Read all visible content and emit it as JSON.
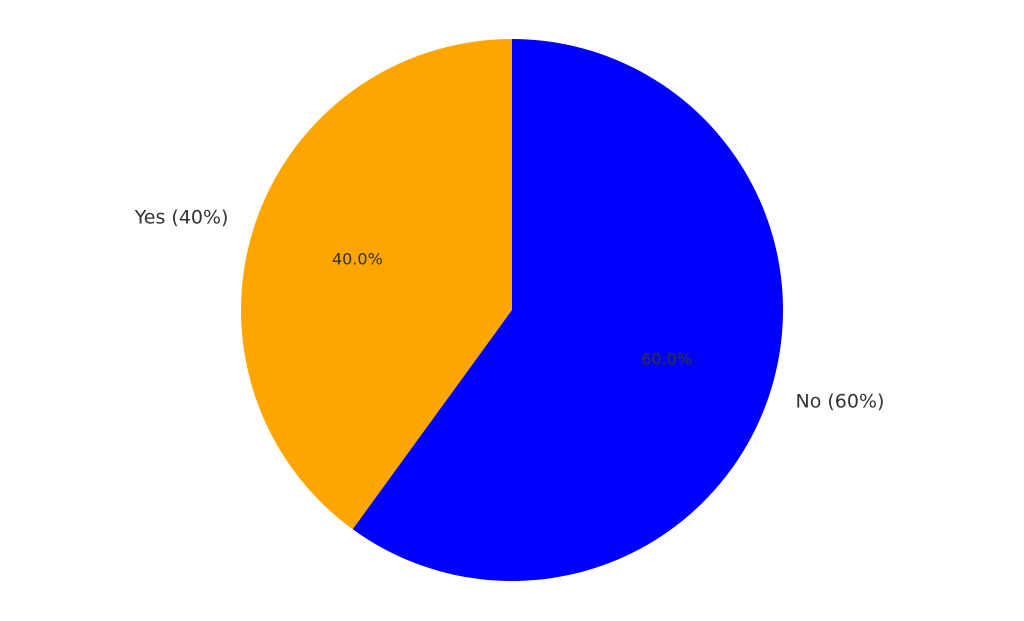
{
  "chart_data": {
    "type": "pie",
    "title": "",
    "labels": [
      "Yes (40%)",
      "No (60%)"
    ],
    "values": [
      40,
      60
    ],
    "percent_labels": [
      "40.0%",
      "60.0%"
    ],
    "colors": [
      "#ffa500",
      "#0000ff"
    ],
    "start_angle_deg": 90,
    "direction": "counterclockwise",
    "legend": "none"
  }
}
